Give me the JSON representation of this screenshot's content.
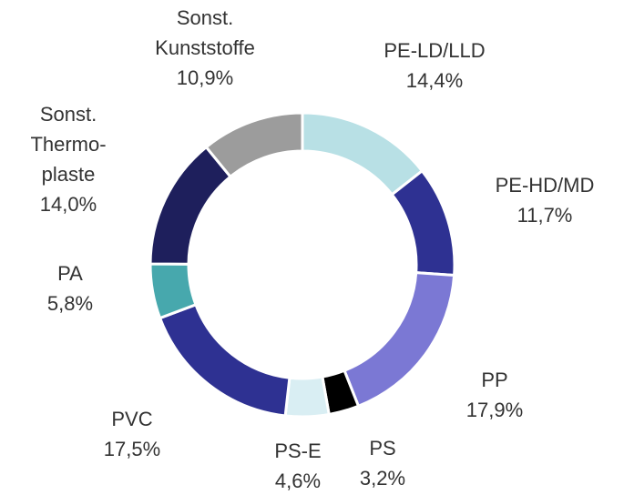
{
  "chart_data": {
    "type": "donut",
    "categories": [
      "PE-LD/LLD",
      "PE-HD/MD",
      "PP",
      "PS",
      "PS-E",
      "PVC",
      "PA",
      "Sonst.\nThermo-\nplaste",
      "Sonst.\nKunststoffe"
    ],
    "values": [
      14.4,
      11.7,
      17.9,
      3.2,
      4.6,
      17.5,
      5.8,
      14.0,
      10.9
    ],
    "value_labels": [
      "14,4%",
      "11,7%",
      "17,9%",
      "3,2%",
      "4,6%",
      "17,5%",
      "5,8%",
      "14,0%",
      "10,9%"
    ],
    "colors": [
      "#b8e0e5",
      "#2e3192",
      "#7b78d4",
      "#000000",
      "#d9eef3",
      "#2e3192",
      "#47a8ad",
      "#1e1f5c",
      "#9c9c9c"
    ]
  }
}
